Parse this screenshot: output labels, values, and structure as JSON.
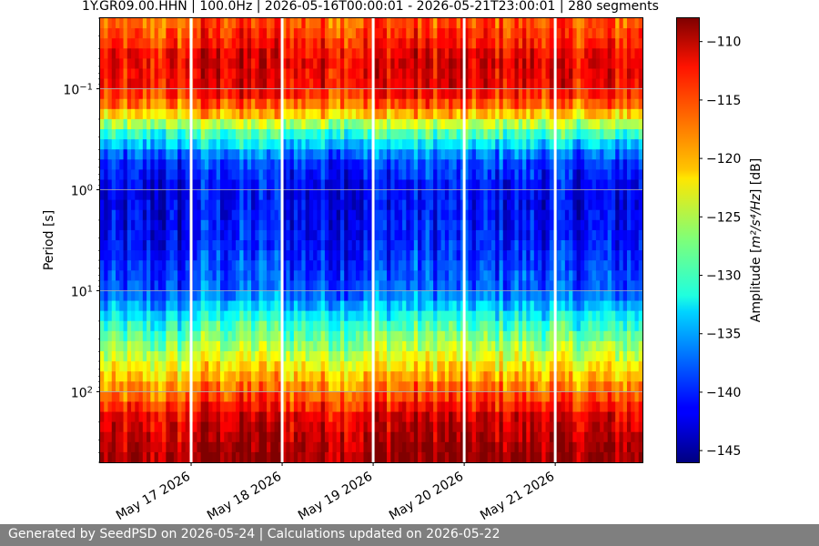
{
  "chart_data": {
    "type": "heatmap",
    "title": "1Y.GR09.00.HHN | 100.0Hz | 2026-05-16T00:00:01 - 2026-05-21T23:00:01 | 280 segments",
    "xlabel": "",
    "ylabel": "Period [s]",
    "y_scale": "log",
    "y_inverted": true,
    "ylim": [
      0.02,
      500
    ],
    "y_ticks": [
      {
        "base": "10",
        "exp": "−1",
        "value": 0.1
      },
      {
        "base": "10",
        "exp": "0",
        "value": 1
      },
      {
        "base": "10",
        "exp": "1",
        "value": 10
      },
      {
        "base": "10",
        "exp": "2",
        "value": 100
      }
    ],
    "x_range": [
      "2026-05-16T00:00:01",
      "2026-05-21T23:00:01"
    ],
    "x_ticks": [
      {
        "label": "May 17 2026",
        "value": "2026-05-17"
      },
      {
        "label": "May 18 2026",
        "value": "2026-05-18"
      },
      {
        "label": "May 19 2026",
        "value": "2026-05-19"
      },
      {
        "label": "May 20 2026",
        "value": "2026-05-20"
      },
      {
        "label": "May 21 2026",
        "value": "2026-05-21"
      }
    ],
    "grid": true,
    "gaps": [
      "2026-05-17T00:00:00",
      "2026-05-18T00:00:00",
      "2026-05-19T00:00:00",
      "2026-05-20T00:00:00",
      "2026-05-21T00:00:00"
    ],
    "colormap": "jet",
    "colorbar": {
      "label_prefix": "Amplitude [",
      "label_math": "m²/s⁴/Hz",
      "label_suffix": "] [dB]",
      "range": [
        -146,
        -108
      ],
      "ticks": [
        "−110",
        "−115",
        "−120",
        "−125",
        "−130",
        "−135",
        "−140",
        "−145"
      ],
      "tick_values": [
        -110,
        -115,
        -120,
        -125,
        -130,
        -135,
        -140,
        -145
      ]
    },
    "amplitude_profile": {
      "log10_period": [
        -1.6,
        -1.3,
        -1.0,
        -0.8,
        -0.6,
        -0.3,
        0.0,
        0.5,
        1.0,
        1.3,
        1.6,
        1.9,
        2.1,
        2.25,
        2.5,
        2.7
      ],
      "db_median": [
        -116,
        -112,
        -113,
        -118,
        -128,
        -139,
        -142,
        -141,
        -138,
        -131,
        -125,
        -119,
        -115,
        -112,
        -110,
        -109
      ]
    },
    "day_offsets_db": [
      -1,
      1,
      0,
      1,
      0.5,
      0
    ]
  },
  "footer": {
    "text": "Generated by SeedPSD on 2026-05-24 | Calculations updated on 2026-05-22"
  }
}
